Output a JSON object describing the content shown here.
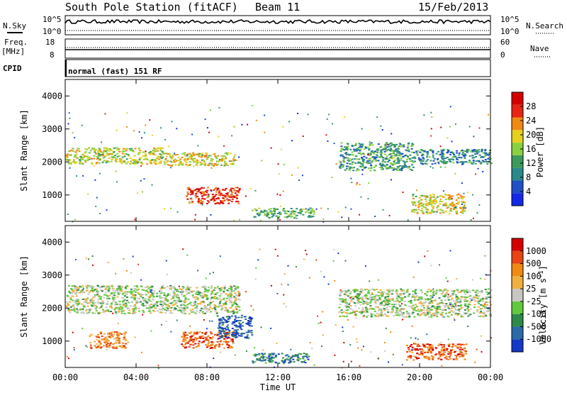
{
  "header": {
    "station": "South Pole Station (fitACF)",
    "beam": "Beam 11",
    "date": "15/Feb/2013"
  },
  "top_panels": {
    "nsky_label": "N.Sky",
    "nsky_ticks": [
      "10^5",
      "10^0"
    ],
    "nsearch_label": "N.Search",
    "nsearch_ticks": [
      "10^5",
      "10^0"
    ],
    "freq_label": "Freq.",
    "freq_unit": "[MHz]",
    "freq_ticks": [
      "18",
      "8"
    ],
    "nave_label": "Nave",
    "nave_ticks": [
      "60",
      "0"
    ],
    "cpid_label": "CPID",
    "cpid_text": "normal (fast) 151 RF"
  },
  "chart_data": [
    {
      "type": "heatmap",
      "name": "power",
      "ylabel": "Slant Range [km]",
      "yticks": [
        "4000",
        "3000",
        "2000",
        "1000"
      ],
      "xticks": [
        "00:00",
        "04:00",
        "08:00",
        "12:00",
        "16:00",
        "20:00",
        "00:00"
      ],
      "ylim": [
        200,
        4500
      ],
      "xlim": [
        0,
        24
      ],
      "colorbar_label": "Power [dB]",
      "colorbar_ticks": [
        "28",
        "24",
        "20",
        "16",
        "12",
        "8",
        "4"
      ],
      "colors": [
        "#1428e6",
        "#1e50c8",
        "#2a8a8a",
        "#3c9a5a",
        "#8ad040",
        "#e8d020",
        "#f08a14",
        "#e82414",
        "#d40000"
      ],
      "regions": [
        {
          "t": [
            0.0,
            5.6
          ],
          "r": [
            1950,
            2450
          ],
          "level": 0.55
        },
        {
          "t": [
            5.6,
            9.6
          ],
          "r": [
            1900,
            2300
          ],
          "level": 0.6
        },
        {
          "t": [
            6.8,
            9.8
          ],
          "r": [
            750,
            1250
          ],
          "level": 0.85
        },
        {
          "t": [
            10.5,
            14.0
          ],
          "r": [
            320,
            620
          ],
          "level": 0.4
        },
        {
          "t": [
            15.4,
            19.6
          ],
          "r": [
            1750,
            2600
          ],
          "level": 0.35
        },
        {
          "t": [
            19.6,
            24.0
          ],
          "r": [
            1950,
            2400
          ],
          "level": 0.3
        },
        {
          "t": [
            19.5,
            22.5
          ],
          "r": [
            450,
            1050
          ],
          "level": 0.6
        }
      ]
    },
    {
      "type": "heatmap",
      "name": "velocity",
      "ylabel": "Slant Range [km]",
      "yticks": [
        "4000",
        "3000",
        "2000",
        "1000"
      ],
      "xticks": [
        "00:00",
        "04:00",
        "08:00",
        "12:00",
        "16:00",
        "20:00",
        "00:00"
      ],
      "xlabel": "Time UT",
      "ylim": [
        200,
        4500
      ],
      "xlim": [
        0,
        24
      ],
      "colorbar_label": "Velocity [m s",
      "colorbar_label_sup": "-1",
      "colorbar_label_end": "]",
      "colorbar_ticks": [
        "1000",
        "500",
        "100",
        "25",
        "-25",
        "-100",
        "-500",
        "-1000"
      ],
      "colors": [
        "#1438c8",
        "#2a6aa8",
        "#2e8a4a",
        "#62c840",
        "#c8c8c0",
        "#f0b040",
        "#f08a14",
        "#e84414",
        "#d40000"
      ],
      "regions": [
        {
          "t": [
            0.0,
            9.8
          ],
          "r": [
            1850,
            2700
          ],
          "level": 0.45
        },
        {
          "t": [
            15.4,
            24.0
          ],
          "r": [
            1750,
            2600
          ],
          "level": 0.45
        },
        {
          "t": [
            1.3,
            3.5
          ],
          "r": [
            800,
            1300
          ],
          "level": 0.72
        },
        {
          "t": [
            6.5,
            9.5
          ],
          "r": [
            800,
            1300
          ],
          "level": 0.78
        },
        {
          "t": [
            8.5,
            10.5
          ],
          "r": [
            1100,
            1800
          ],
          "level": 0.12
        },
        {
          "t": [
            10.5,
            13.8
          ],
          "r": [
            350,
            650
          ],
          "level": 0.22
        },
        {
          "t": [
            19.2,
            22.6
          ],
          "r": [
            450,
            950
          ],
          "level": 0.8
        }
      ]
    }
  ]
}
